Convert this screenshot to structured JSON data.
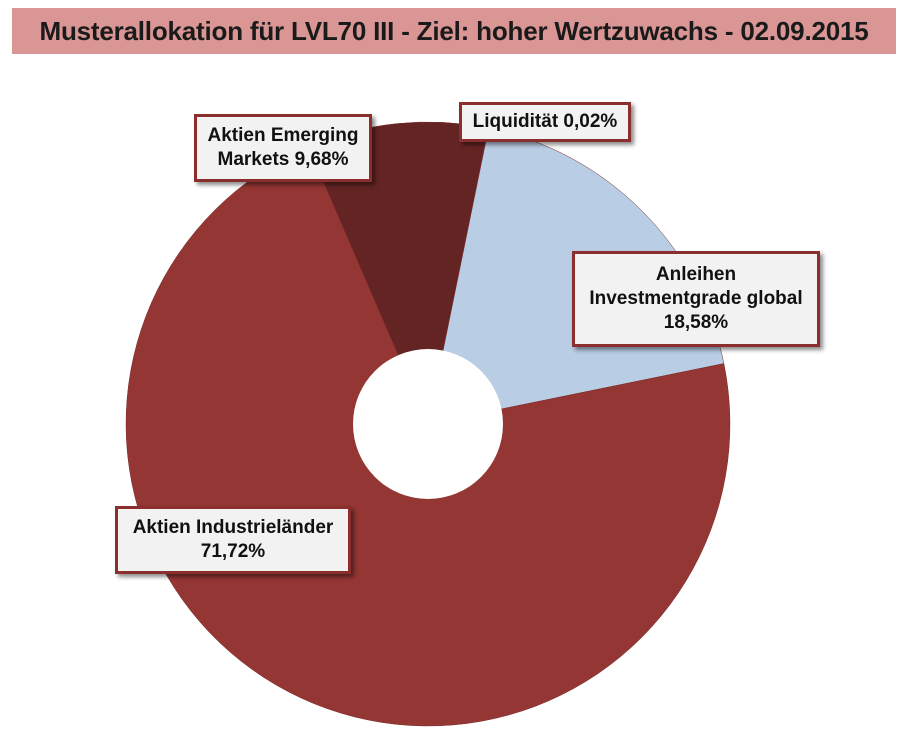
{
  "title": "Musterallokation für LVL70 III - Ziel: hoher Wertzuwachs - 02.09.2015",
  "chart_data": {
    "type": "pie",
    "style": "doughnut",
    "categories": [
      "Liquidität",
      "Anleihen Investmentgrade global",
      "Aktien Industrieländer",
      "Aktien Emerging Markets"
    ],
    "values": [
      0.02,
      18.58,
      71.72,
      9.68
    ],
    "colors": [
      "#f0c75e",
      "#b9cde5",
      "#943634",
      "#632423"
    ],
    "labels": [
      {
        "line1": "Liquidität 0,02%",
        "line2": "",
        "line3": ""
      },
      {
        "line1": "Anleihen",
        "line2": "Investmentgrade global",
        "line3": "18,58%"
      },
      {
        "line1": "Aktien Industrieländer",
        "line2": "71,72%",
        "line3": ""
      },
      {
        "line1": "Aktien Emerging",
        "line2": "Markets 9,68%",
        "line3": ""
      }
    ]
  }
}
